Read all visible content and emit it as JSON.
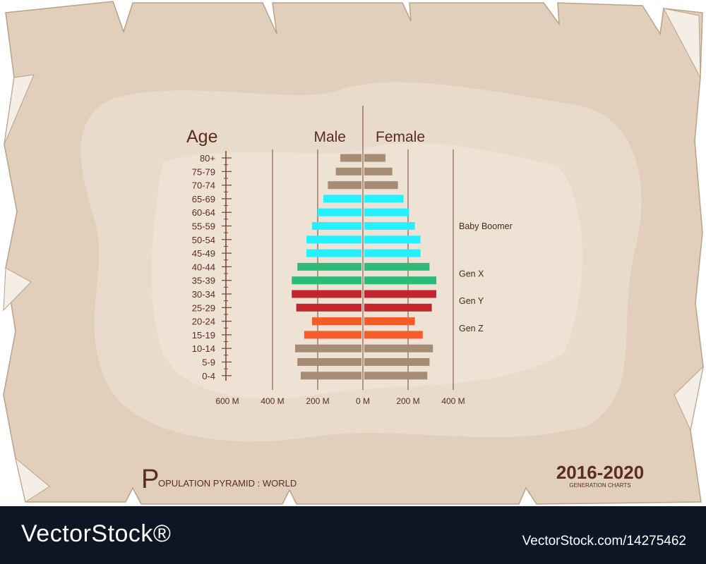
{
  "colors": {
    "boomer": "#24f0ff",
    "genx": "#2dbb79",
    "geny": "#c4262f",
    "genz": "#f45c2a",
    "other": "#a68c74",
    "text": "#5a2d1e",
    "axis": "#7a4030",
    "paper": "#e3d2bf",
    "footer": "#0e1524"
  },
  "chart_data": {
    "type": "bar",
    "title": "",
    "age_label": "Age",
    "male_label": "Male",
    "female_label": "Female",
    "categories": [
      "80+",
      "75-79",
      "70-74",
      "65-69",
      "60-64",
      "55-59",
      "50-54",
      "45-49",
      "40-44",
      "35-39",
      "30-34",
      "25-29",
      "20-24",
      "15-19",
      "10-14",
      "5-9",
      "0-4"
    ],
    "series": [
      {
        "name": "Male",
        "values": [
          100,
          120,
          155,
          175,
          200,
          225,
          250,
          250,
          290,
          315,
          315,
          295,
          225,
          260,
          300,
          290,
          275
        ]
      },
      {
        "name": "Female",
        "values": [
          100,
          130,
          155,
          180,
          205,
          230,
          255,
          255,
          295,
          325,
          325,
          305,
          230,
          265,
          310,
          295,
          285
        ]
      }
    ],
    "x_ticks": [
      "600 M",
      "400 M",
      "200 M",
      "0 M",
      "200 M",
      "400 M"
    ],
    "generations": [
      {
        "name": "Baby Boomer",
        "categories": [
          "65-69",
          "60-64",
          "55-59",
          "50-54",
          "45-49"
        ]
      },
      {
        "name": "Gen X",
        "categories": [
          "40-44",
          "35-39"
        ]
      },
      {
        "name": "Gen Y",
        "categories": [
          "30-34",
          "25-29"
        ]
      },
      {
        "name": "Gen Z",
        "categories": [
          "20-24",
          "15-19"
        ]
      }
    ],
    "xlim": [
      -600,
      400
    ]
  },
  "footer_title": {
    "initial": "P",
    "rest": "OPULATION PYRAMID : WORLD"
  },
  "years": "2016-2020",
  "years_caption": "GENERATION CHARTS",
  "watermark": {
    "brand": "VectorStock®",
    "id": "VectorStock.com/14275462"
  }
}
